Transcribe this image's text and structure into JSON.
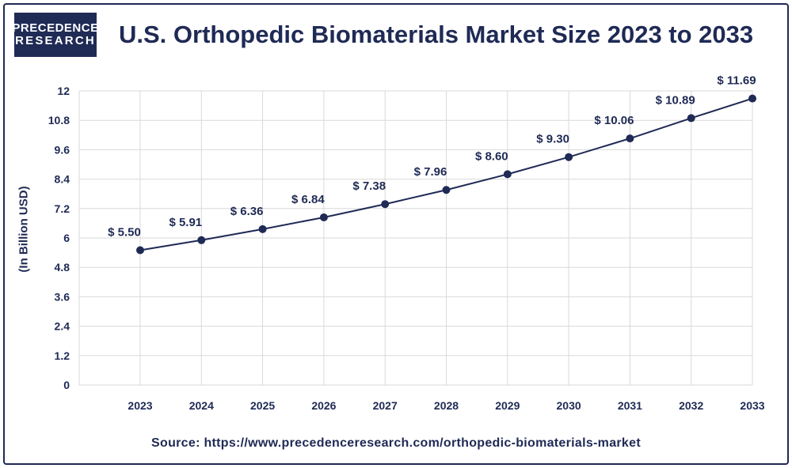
{
  "brand": {
    "line1": "PRECEDENCE",
    "line2": "RESEARCH"
  },
  "colors": {
    "primary": "#1f2a55",
    "grid": "#d9d9d9"
  },
  "chart_data": {
    "type": "line",
    "title": "U.S. Orthopedic Biomaterials Market Size 2023 to 2033",
    "xlabel": "",
    "ylabel": "(In Billion USD)",
    "categories": [
      "2023",
      "2024",
      "2025",
      "2026",
      "2027",
      "2028",
      "2029",
      "2030",
      "2031",
      "2032",
      "2033"
    ],
    "series": [
      {
        "values": [
          5.5,
          5.91,
          6.36,
          6.84,
          7.38,
          7.96,
          8.6,
          9.3,
          10.06,
          10.89,
          11.69
        ]
      }
    ],
    "data_labels": [
      "$ 5.50",
      "$ 5.91",
      "$ 6.36",
      "$ 6.84",
      "$ 7.38",
      "$ 7.96",
      "$ 8.60",
      "$ 9.30",
      "$ 10.06",
      "$ 10.89",
      "$ 11.69"
    ],
    "yticks": [
      "0",
      "1.2",
      "2.4",
      "3.6",
      "4.8",
      "6",
      "7.2",
      "8.4",
      "9.6",
      "10.8",
      "12"
    ],
    "ylim": [
      0,
      12
    ],
    "grid": true,
    "legend": "none"
  },
  "source": "Source: https://www.precedenceresearch.com/orthopedic-biomaterials-market"
}
